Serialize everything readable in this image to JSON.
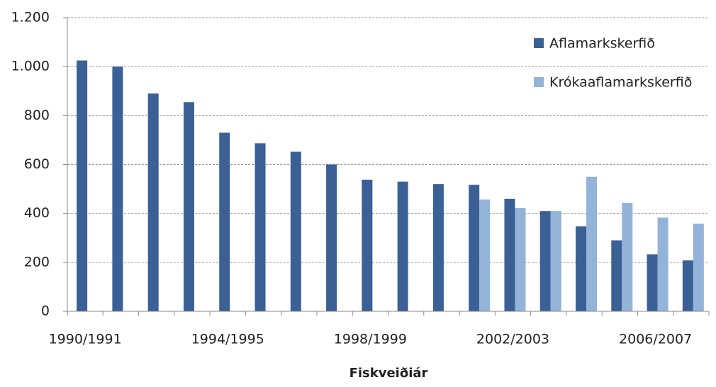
{
  "chart_data": {
    "type": "bar",
    "x_label": "Fiskveiðiár",
    "categories": [
      "1990/1991",
      null,
      null,
      null,
      "1994/1995",
      null,
      null,
      null,
      "1998/1999",
      null,
      null,
      null,
      "2002/2003",
      null,
      null,
      null,
      "2006/2007",
      null
    ],
    "series": [
      {
        "name": "Aflamarkskerfið",
        "color": "#3a6096",
        "values": [
          1025,
          1000,
          890,
          855,
          730,
          687,
          652,
          600,
          538,
          530,
          520,
          517,
          460,
          410,
          347,
          290,
          233,
          208
        ]
      },
      {
        "name": "Krókaaflamarkskerfið",
        "color": "#93b3d8",
        "values": [
          null,
          null,
          null,
          null,
          null,
          null,
          null,
          null,
          null,
          null,
          null,
          457,
          422,
          410,
          550,
          443,
          383,
          358
        ]
      }
    ],
    "ylim": [
      0,
      1200
    ],
    "yticks": [
      0,
      200,
      400,
      600,
      800,
      {
        "value": 1000,
        "label": "1.000"
      },
      {
        "value": 1200,
        "label": "1.200"
      }
    ],
    "grid": true,
    "legend": "top-right"
  }
}
